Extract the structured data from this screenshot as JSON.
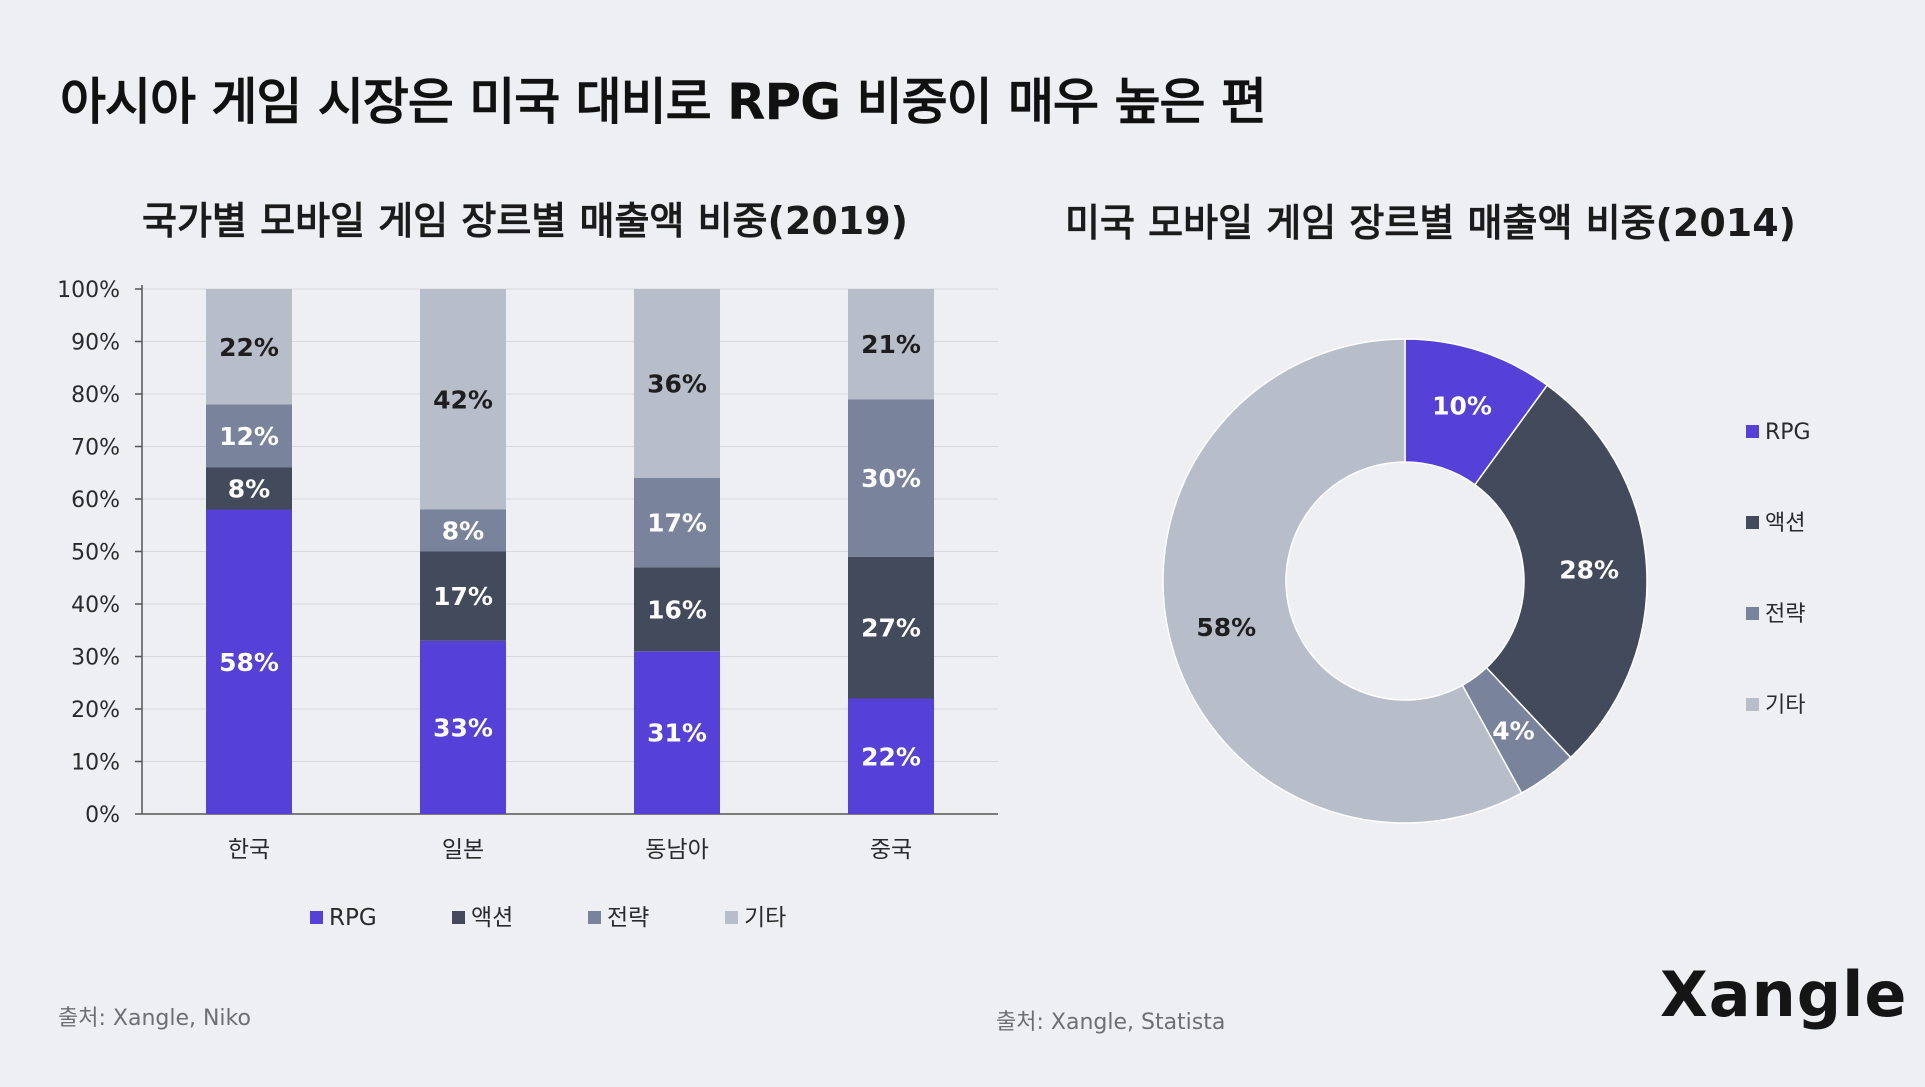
{
  "page": {
    "title": "아시아 게임 시장은 미국 대비로 RPG 비중이 매우 높은 편"
  },
  "brand": "Xangle",
  "colors": {
    "RPG": "#5540d8",
    "액션": "#424a5c",
    "전략": "#79849c",
    "기타": "#b8bdca"
  },
  "chart_data": [
    {
      "type": "bar",
      "stacked": true,
      "title": "국가별 모바일 게임 장르별 매출액 비중(2019)",
      "categories": [
        "한국",
        "일본",
        "동남아",
        "중국"
      ],
      "series": [
        {
          "name": "RPG",
          "values": [
            58,
            33,
            31,
            22
          ]
        },
        {
          "name": "액션",
          "values": [
            8,
            17,
            16,
            27
          ]
        },
        {
          "name": "전략",
          "values": [
            12,
            8,
            17,
            30
          ]
        },
        {
          "name": "기타",
          "values": [
            22,
            42,
            36,
            21
          ]
        }
      ],
      "ylim": [
        0,
        100
      ],
      "yticks": [
        "0%",
        "10%",
        "20%",
        "30%",
        "40%",
        "50%",
        "60%",
        "70%",
        "80%",
        "90%",
        "100%"
      ],
      "legend": [
        "RPG",
        "액션",
        "전략",
        "기타"
      ],
      "legend_position": "bottom",
      "source": "출처: Xangle, Niko"
    },
    {
      "type": "pie",
      "donut": true,
      "title": "미국 모바일 게임 장르별 매출액 비중(2014)",
      "labels": [
        "RPG",
        "액션",
        "전략",
        "기타"
      ],
      "values": [
        10,
        28,
        4,
        58
      ],
      "legend": [
        "RPG",
        "액션",
        "전략",
        "기타"
      ],
      "legend_position": "right",
      "source": "출처: Xangle, Statista"
    }
  ]
}
